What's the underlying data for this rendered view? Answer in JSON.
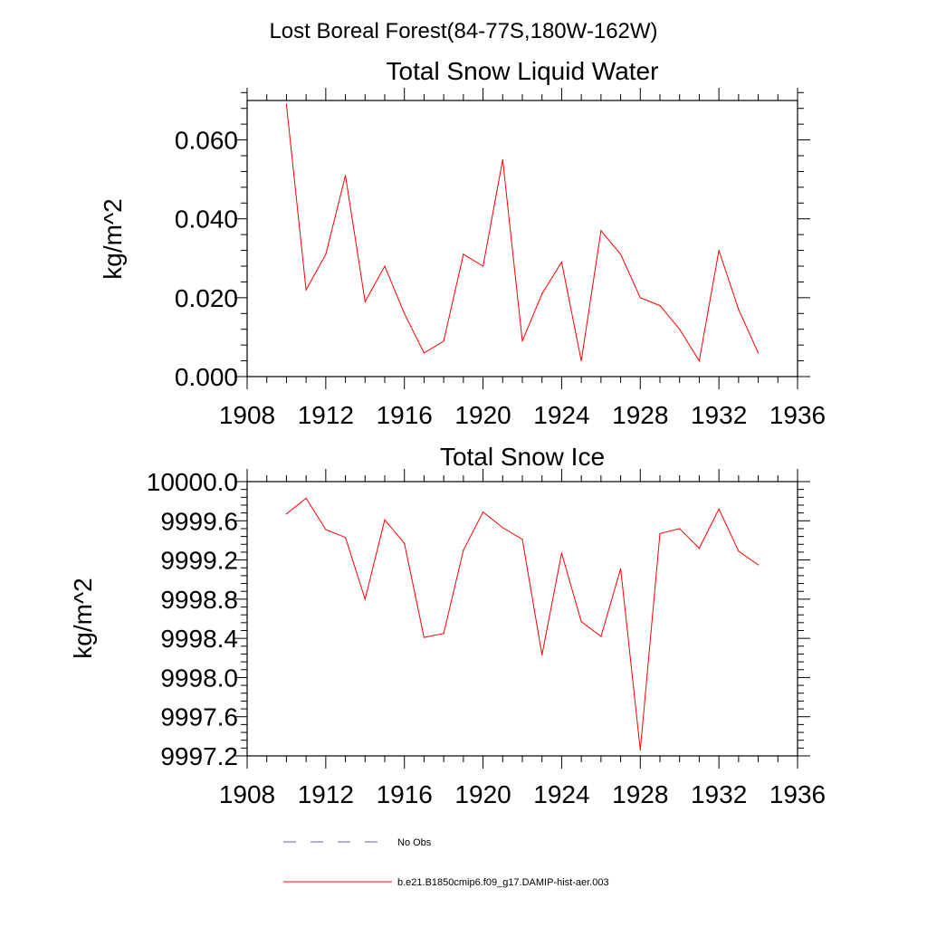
{
  "figure": {
    "title": "Lost Boreal Forest(84-77S,180W-162W)"
  },
  "colors": {
    "model": "#ff0000",
    "obs": "#6666aa",
    "axes": "#000000"
  },
  "legend": {
    "placement": "bottom",
    "items": [
      {
        "label": "No Obs",
        "style": "dashed",
        "color": "#6666aa"
      },
      {
        "label": "b.e21.B1850cmip6.f09_g17.DAMIP-hist-aer.003",
        "style": "solid",
        "color": "#ff0000"
      }
    ]
  },
  "chart_data": [
    {
      "type": "line",
      "title": "Total Snow Liquid Water",
      "xlabel": "",
      "ylabel": "kg/m^2",
      "xlim": [
        1908,
        1936
      ],
      "ylim": [
        0.0,
        0.07
      ],
      "xticks": [
        1908,
        1912,
        1916,
        1920,
        1924,
        1928,
        1932,
        1936
      ],
      "xtick_labels": [
        "1908",
        "1912",
        "1916",
        "1920",
        "1924",
        "1928",
        "1932",
        "1936"
      ],
      "yticks": [
        0.0,
        0.02,
        0.04,
        0.06
      ],
      "ytick_labels": [
        "0.000",
        "0.020",
        "0.040",
        "0.060"
      ],
      "grid": false,
      "x": [
        1910,
        1911,
        1912,
        1913,
        1914,
        1915,
        1916,
        1917,
        1918,
        1919,
        1920,
        1921,
        1922,
        1923,
        1924,
        1925,
        1926,
        1927,
        1928,
        1929,
        1930,
        1931,
        1932,
        1933,
        1934
      ],
      "series": [
        {
          "name": "b.e21.B1850cmip6.f09_g17.DAMIP-hist-aer.003",
          "values": [
            0.069,
            0.022,
            0.031,
            0.051,
            0.019,
            0.028,
            0.016,
            0.006,
            0.009,
            0.031,
            0.028,
            0.055,
            0.009,
            0.021,
            0.029,
            0.004,
            0.037,
            0.031,
            0.02,
            0.018,
            0.012,
            0.004,
            0.032,
            0.017,
            0.006
          ]
        }
      ]
    },
    {
      "type": "line",
      "title": "Total Snow Ice",
      "xlabel": "",
      "ylabel": "kg/m^2",
      "xlim": [
        1908,
        1936
      ],
      "ylim": [
        9997.2,
        10000.0
      ],
      "xticks": [
        1908,
        1912,
        1916,
        1920,
        1924,
        1928,
        1932,
        1936
      ],
      "xtick_labels": [
        "1908",
        "1912",
        "1916",
        "1920",
        "1924",
        "1928",
        "1932",
        "1936"
      ],
      "yticks": [
        9997.2,
        9997.6,
        9998.0,
        9998.4,
        9998.8,
        9999.2,
        9999.6,
        10000.0
      ],
      "ytick_labels": [
        "9997.2",
        "9997.6",
        "9998.0",
        "9998.4",
        "9998.8",
        "9999.2",
        "9999.6",
        "10000.0"
      ],
      "grid": false,
      "x": [
        1910,
        1911,
        1912,
        1913,
        1914,
        1915,
        1916,
        1917,
        1918,
        1919,
        1920,
        1921,
        1922,
        1923,
        1924,
        1925,
        1926,
        1927,
        1928,
        1929,
        1930,
        1931,
        1932,
        1933,
        1934
      ],
      "series": [
        {
          "name": "b.e21.B1850cmip6.f09_g17.DAMIP-hist-aer.003",
          "values": [
            9999.67,
            9999.83,
            9999.51,
            9999.43,
            9998.8,
            9999.61,
            9999.37,
            9998.41,
            9998.45,
            9999.3,
            9999.69,
            9999.53,
            9999.41,
            9998.23,
            9999.27,
            9998.57,
            9998.42,
            9999.11,
            9997.26,
            9999.47,
            9999.52,
            9999.32,
            9999.72,
            9999.29,
            9999.15
          ]
        }
      ]
    }
  ]
}
